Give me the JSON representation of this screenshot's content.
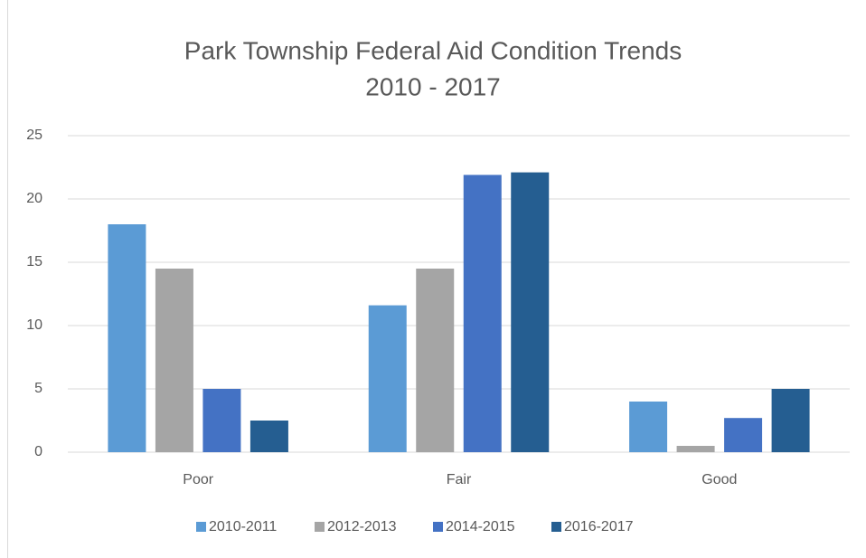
{
  "chart_data": {
    "type": "bar",
    "title": "Park Township Federal Aid Condition Trends",
    "subtitle": "2010 - 2017",
    "categories": [
      "Poor",
      "Fair",
      "Good"
    ],
    "series": [
      {
        "name": "2010-2011",
        "color": "#5b9bd5",
        "values": [
          18,
          11.6,
          4
        ]
      },
      {
        "name": "2012-2013",
        "color": "#a5a5a5",
        "values": [
          14.5,
          14.5,
          0.5
        ]
      },
      {
        "name": "2014-2015",
        "color": "#4472c4",
        "values": [
          5,
          21.9,
          2.7
        ]
      },
      {
        "name": "2016-2017",
        "color": "#255e91",
        "values": [
          2.5,
          22.1,
          5
        ]
      }
    ],
    "ylim": [
      0,
      25
    ],
    "yticks": [
      0,
      5,
      10,
      15,
      20,
      25
    ],
    "grid": true,
    "legend": "bottom"
  }
}
